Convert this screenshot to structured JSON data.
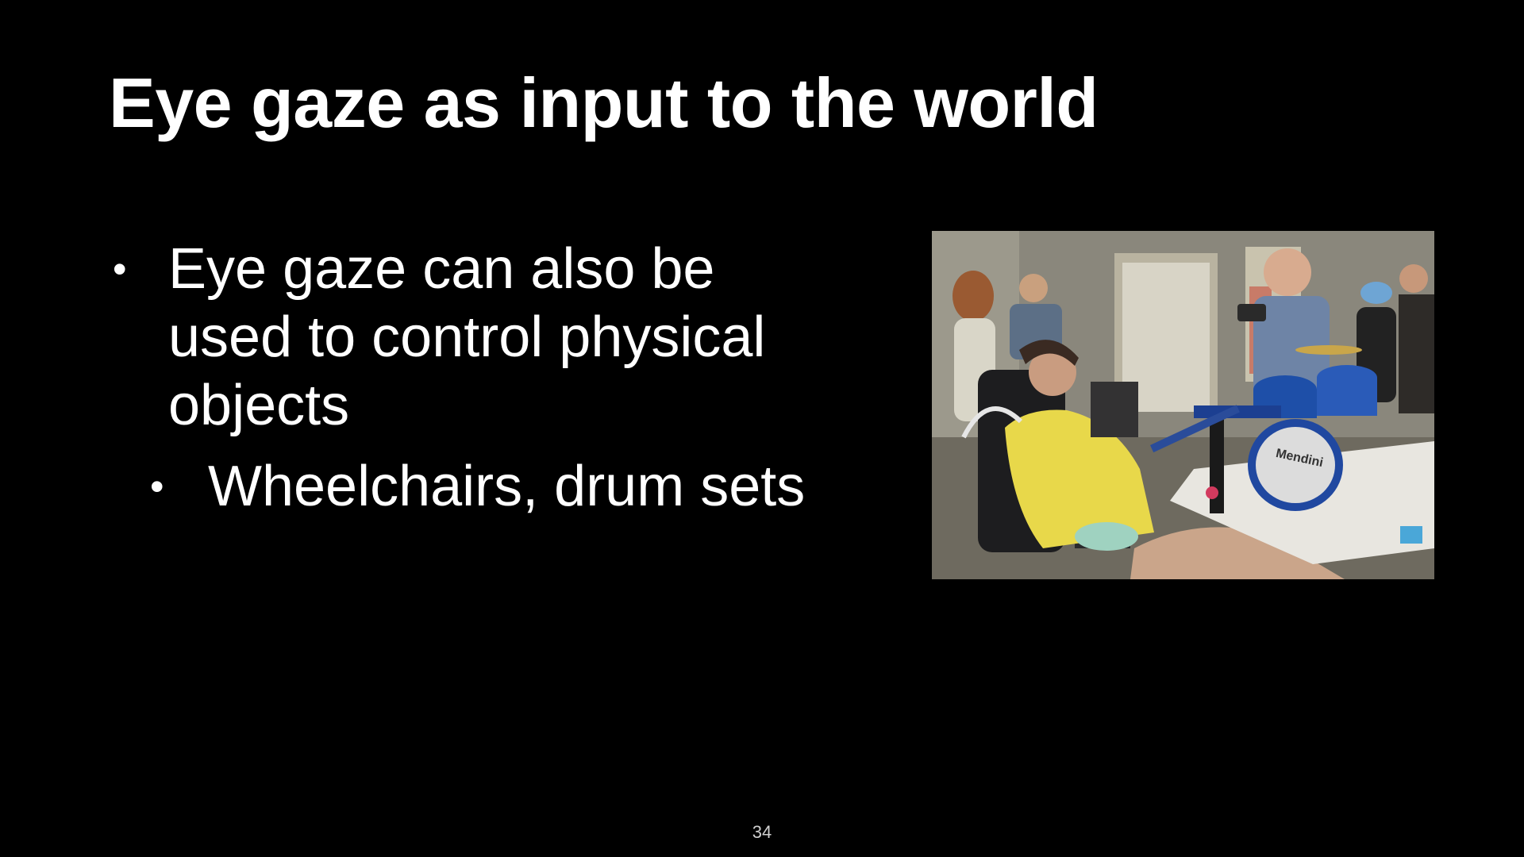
{
  "slide": {
    "title": "Eye gaze as input to the world",
    "bullets": [
      {
        "text": "Eye gaze can also be used to control physical objects",
        "sub_bullets": [
          "Wheelchairs, drum sets"
        ]
      }
    ],
    "bullet_glyph": "•",
    "photo": {
      "drum_brand": "Mendini"
    },
    "page_number": "34"
  },
  "colors": {
    "background": "#000000",
    "text": "#ffffff"
  }
}
